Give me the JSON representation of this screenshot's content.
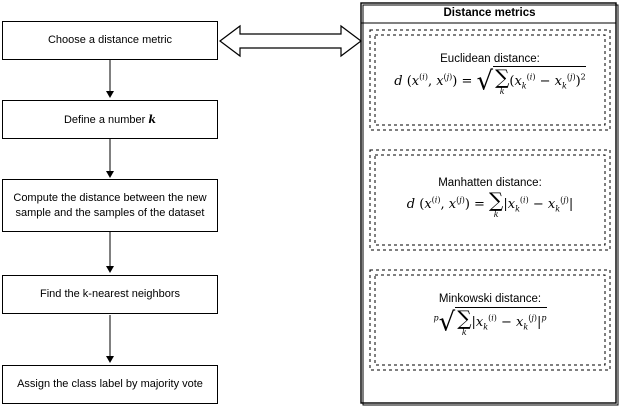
{
  "flow_steps": [
    {
      "label": "Choose a distance metric"
    },
    {
      "label": "Define a number k"
    },
    {
      "label": "Compute the distance between the new sample and the samples of the dataset"
    },
    {
      "label": "Find the k-nearest neighbors"
    },
    {
      "label": "Assign the class label by majority vote"
    }
  ],
  "panel": {
    "title": "Distance metrics",
    "metrics": [
      {
        "name": "Euclidean distance:"
      },
      {
        "name": "Manhatten distance:"
      },
      {
        "name": "Minkowski distance:"
      }
    ]
  }
}
